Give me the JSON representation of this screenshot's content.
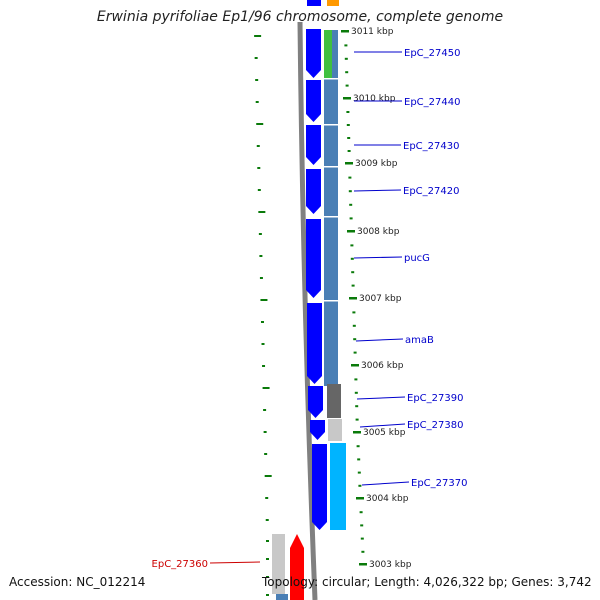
{
  "title": "Erwinia pyrifoliae Ep1/96 chromosome, complete genome",
  "footer": {
    "accession": "Accession: NC_012214",
    "topology": "Topology: circular; Length: 4,026,322 bp; Genes: 3,742"
  },
  "colors": {
    "gene_forward": "#0000ff",
    "gene_reverse": "#ff0000",
    "feature_blue": "#4a7fb5",
    "feature_green": "#40c040",
    "feature_dark_gray": "#666666",
    "feature_light_gray": "#c8c8c8",
    "feature_cyan": "#00b4ff",
    "feature_orange": "#ff9900",
    "label_forward": "#0000cc",
    "label_reverse": "#cc0000",
    "tick_green": "#0a7a0a",
    "backbone": "#808080"
  },
  "scale_ticks": [
    "3011 kbp",
    "3010 kbp",
    "3009 kbp",
    "3008 kbp",
    "3007 kbp",
    "3006 kbp",
    "3005 kbp",
    "3004 kbp",
    "3003 kbp"
  ],
  "genes": [
    {
      "label": "EpC_27450",
      "strand": "forward"
    },
    {
      "label": "EpC_27440",
      "strand": "forward"
    },
    {
      "label": "EpC_27430",
      "strand": "forward"
    },
    {
      "label": "EpC_27420",
      "strand": "forward"
    },
    {
      "label": "pucG",
      "strand": "forward"
    },
    {
      "label": "amaB",
      "strand": "forward"
    },
    {
      "label": "EpC_27390",
      "strand": "forward"
    },
    {
      "label": "EpC_27380",
      "strand": "forward"
    },
    {
      "label": "EpC_27370",
      "strand": "forward"
    },
    {
      "label": "EpC_27360",
      "strand": "reverse"
    }
  ]
}
